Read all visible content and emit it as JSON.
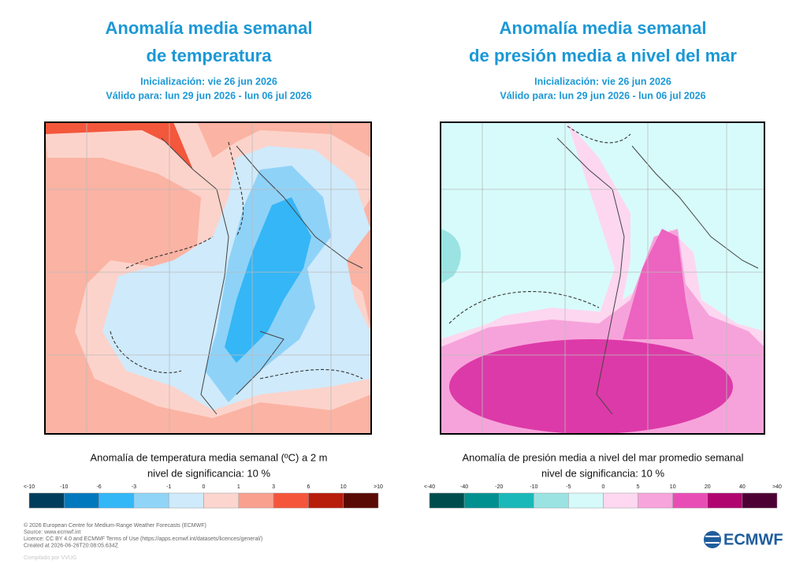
{
  "panels": [
    {
      "title": [
        "Anomalía media semanal",
        "de temperatura"
      ],
      "init": "Inicialización: vie 26 jun 2026",
      "valid": "Válido para: lun 29 jun 2026 - lun 06 jul 2026",
      "caption": "Anomalía de temperatura media semanal (ºC) a 2 m",
      "significance": "nivel de significancia: 10 %",
      "legend_labels": [
        "<-10",
        "-10",
        "-6",
        "-3",
        "-1",
        "0",
        "1",
        "3",
        "6",
        "10",
        ">10"
      ],
      "legend_colors": [
        "#003d5c",
        "#0078bd",
        "#33b7f7",
        "#90d4f8",
        "#cfeafb",
        "#fcd5cf",
        "#f9a08f",
        "#f5553a",
        "#b81c0a",
        "#5a0a04"
      ]
    },
    {
      "title": [
        "Anomalía media semanal",
        "de presión media a nivel del mar"
      ],
      "init": "Inicialización: vie 26 jun 2026",
      "valid": "Válido para: lun 29 jun 2026 - lun 06 jul 2026",
      "caption": "Anomalía de presión media a nivel del mar promedio semanal",
      "significance": "nivel de significancia: 10 %",
      "legend_labels": [
        "<-40",
        "-40",
        "-20",
        "-10",
        "-5",
        "0",
        "5",
        "10",
        "20",
        "40",
        ">40"
      ],
      "legend_colors": [
        "#004d4d",
        "#009090",
        "#1ab8b8",
        "#9be3e3",
        "#d6f9f9",
        "#fdd8f0",
        "#f8a4dc",
        "#e84db5",
        "#b0056f",
        "#4d0033"
      ]
    }
  ],
  "footer": [
    "© 2026 European Centre for Medium-Range Weather Forecasts (ECMWF)",
    "Source: www.ecmwf.int",
    "Licence: CC BY 4.0 and ECMWF Terms of Use (https://apps.ecmwf.int/datasets/licences/general/)",
    "Created at 2026-06-26T20:08:05.634Z"
  ],
  "credit": "Compilado por VVUG",
  "logo": "ECMWF"
}
